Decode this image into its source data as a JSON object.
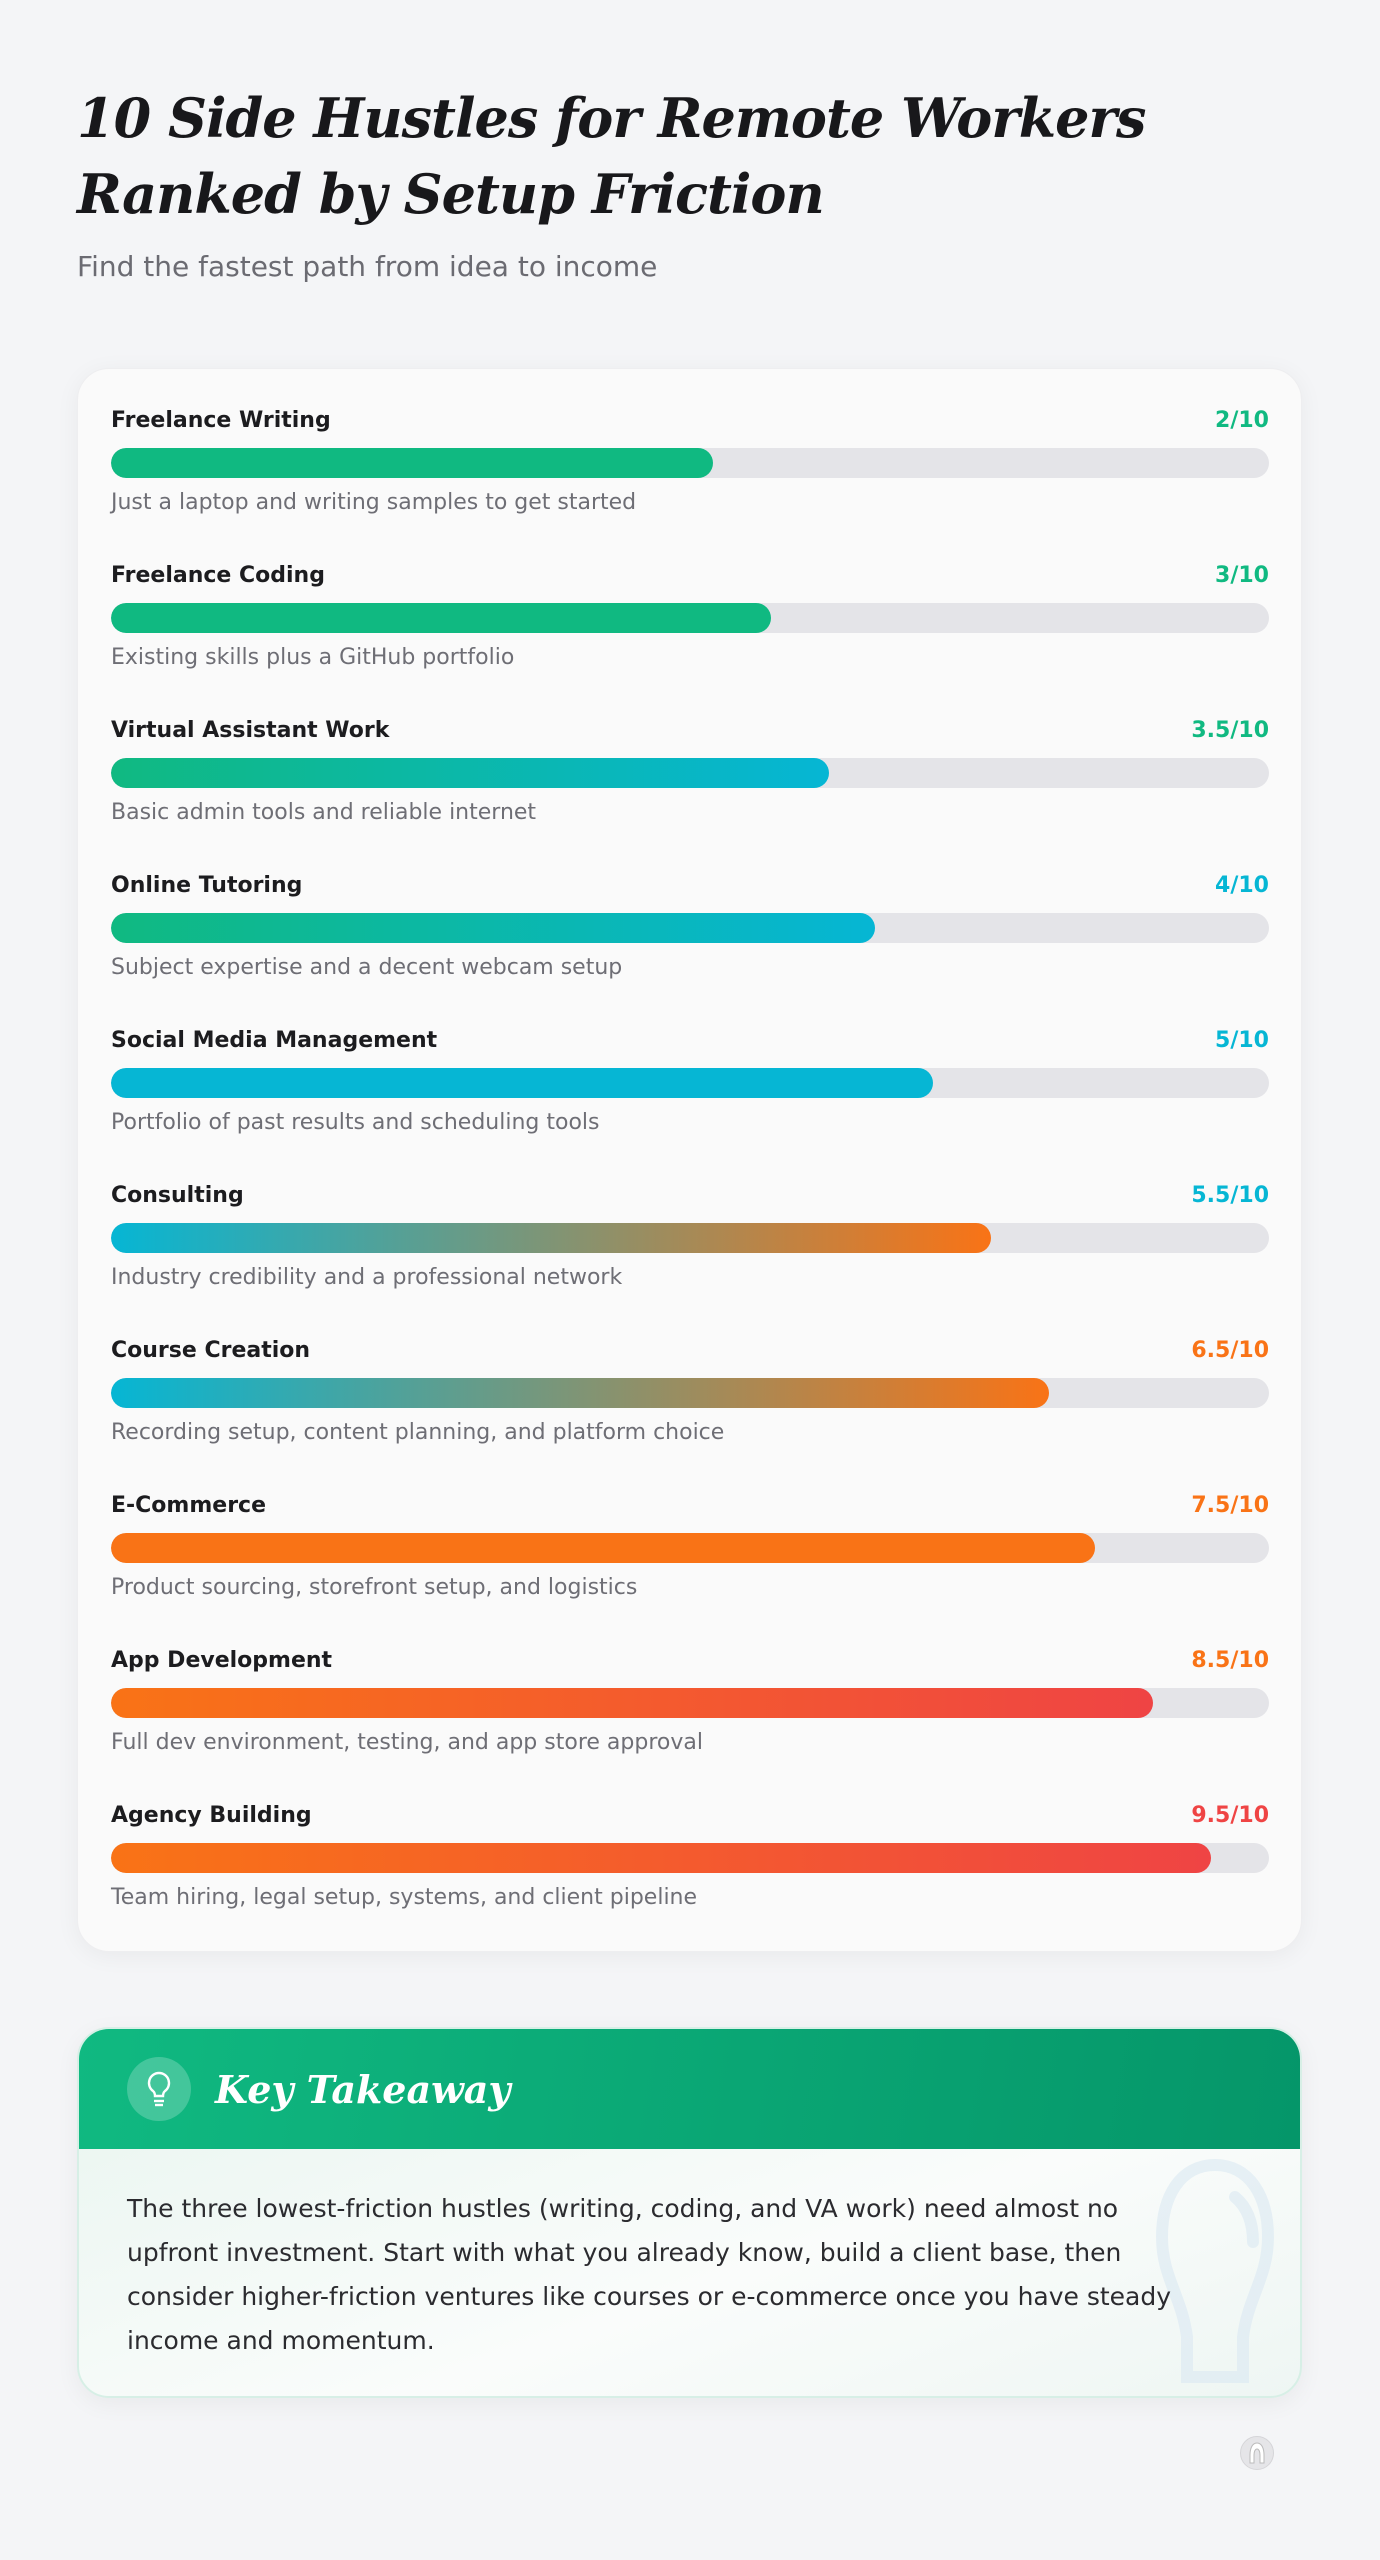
{
  "header": {
    "title": "10 Side Hustles for Remote Workers Ranked by Setup Friction",
    "subtitle": "Find the fastest path from idea to income"
  },
  "colors": {
    "green": "#10b981",
    "cyan": "#06b6d4",
    "orange": "#f97316",
    "red": "#ef4444",
    "track": "#e4e4e8"
  },
  "hustles": [
    {
      "label": "Freelance Writing",
      "score": "2/10",
      "fill_percent": 52,
      "description": "Just a laptop and writing samples to get started",
      "score_color": "#10b981",
      "gradient": [
        "#10b981",
        "#10b981"
      ]
    },
    {
      "label": "Freelance Coding",
      "score": "3/10",
      "fill_percent": 57,
      "description": "Existing skills plus a GitHub portfolio",
      "score_color": "#10b981",
      "gradient": [
        "#10b981",
        "#10b981"
      ]
    },
    {
      "label": "Virtual Assistant Work",
      "score": "3.5/10",
      "fill_percent": 62,
      "description": "Basic admin tools and reliable internet",
      "score_color": "#10b981",
      "gradient": [
        "#10b981",
        "#06b6d4"
      ]
    },
    {
      "label": "Online Tutoring",
      "score": "4/10",
      "fill_percent": 66,
      "description": "Subject expertise and a decent webcam setup",
      "score_color": "#06b6d4",
      "gradient": [
        "#10b981",
        "#06b6d4"
      ]
    },
    {
      "label": "Social Media Management",
      "score": "5/10",
      "fill_percent": 71,
      "description": "Portfolio of past results and scheduling tools",
      "score_color": "#06b6d4",
      "gradient": [
        "#06b6d4",
        "#06b6d4"
      ]
    },
    {
      "label": "Consulting",
      "score": "5.5/10",
      "fill_percent": 76,
      "description": "Industry credibility and a professional network",
      "score_color": "#06b6d4",
      "gradient": [
        "#06b6d4",
        "#f97316"
      ]
    },
    {
      "label": "Course Creation",
      "score": "6.5/10",
      "fill_percent": 81,
      "description": "Recording setup, content planning, and platform choice",
      "score_color": "#f97316",
      "gradient": [
        "#06b6d4",
        "#f97316"
      ]
    },
    {
      "label": "E-Commerce",
      "score": "7.5/10",
      "fill_percent": 85,
      "description": "Product sourcing, storefront setup, and logistics",
      "score_color": "#f97316",
      "gradient": [
        "#f97316",
        "#f97316"
      ]
    },
    {
      "label": "App Development",
      "score": "8.5/10",
      "fill_percent": 90,
      "description": "Full dev environment, testing, and app store approval",
      "score_color": "#f97316",
      "gradient": [
        "#f97316",
        "#ef4444"
      ]
    },
    {
      "label": "Agency Building",
      "score": "9.5/10",
      "fill_percent": 95,
      "description": "Team hiring, legal setup, systems, and client pipeline",
      "score_color": "#ef4444",
      "gradient": [
        "#f97316",
        "#ef4444"
      ]
    }
  ],
  "takeaway": {
    "icon": "lightbulb-icon",
    "title": "Key Takeaway",
    "body": "The three lowest-friction hustles (writing, coding, and VA work) need almost no upfront investment. Start with what you already know, build a client base, then consider higher-friction ventures like courses or e-commerce once you have steady income and momentum."
  },
  "footer": {
    "icon": "brand-logo-icon"
  }
}
